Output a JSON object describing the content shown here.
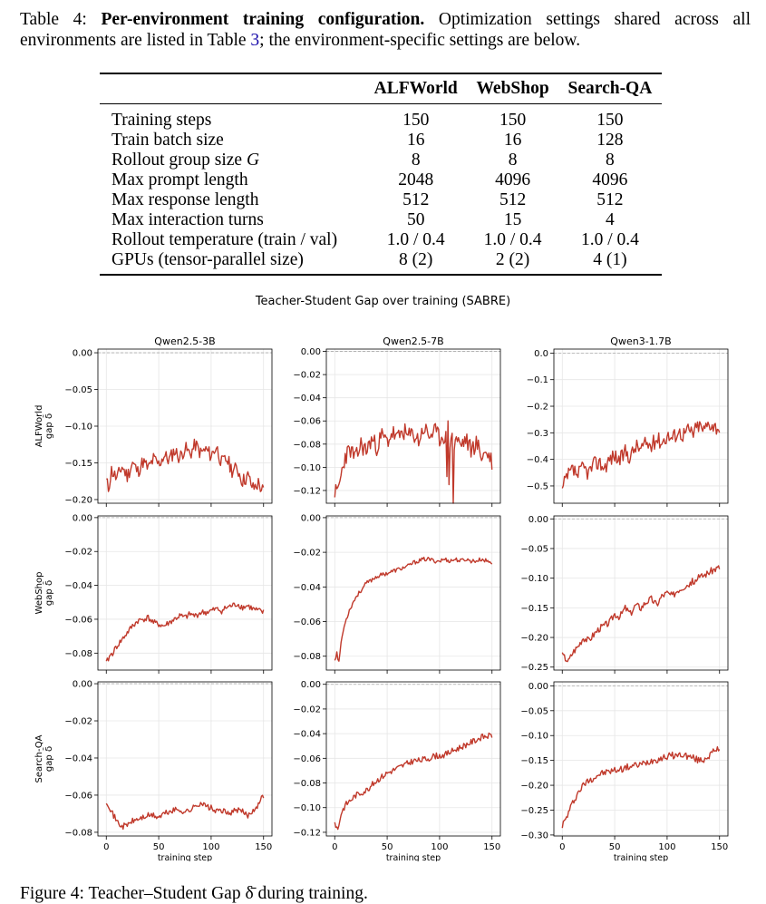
{
  "table_caption": {
    "label": "Table 4:",
    "title": "Per-environment training configuration.",
    "text_before_ref": "Optimization settings shared across all environments are listed in Table ",
    "ref": "3",
    "text_after_ref": "; the environment-specific settings are below."
  },
  "config_table": {
    "columns": [
      "",
      "ALFWorld",
      "WebShop",
      "Search-QA"
    ],
    "rows": [
      {
        "label": "Training steps",
        "label_var": "",
        "values": [
          "150",
          "150",
          "150"
        ]
      },
      {
        "label": "Train batch size",
        "label_var": "",
        "values": [
          "16",
          "16",
          "128"
        ]
      },
      {
        "label": "Rollout group size ",
        "label_var": "G",
        "values": [
          "8",
          "8",
          "8"
        ]
      },
      {
        "label": "Max prompt length",
        "label_var": "",
        "values": [
          "2048",
          "4096",
          "4096"
        ]
      },
      {
        "label": "Max response length",
        "label_var": "",
        "values": [
          "512",
          "512",
          "512"
        ]
      },
      {
        "label": "Max interaction turns",
        "label_var": "",
        "values": [
          "50",
          "15",
          "4"
        ]
      },
      {
        "label": "Rollout temperature (train / val)",
        "label_var": "",
        "values": [
          "1.0 / 0.4",
          "1.0 / 0.4",
          "1.0 / 0.4"
        ]
      },
      {
        "label": "GPUs (tensor-parallel size)",
        "label_var": "",
        "values": [
          "8 (2)",
          "2 (2)",
          "4 (1)"
        ]
      }
    ]
  },
  "figure_caption_partial": "Figure 4: Teacher–Student Gap δ̄ during training.",
  "colors": {
    "line": "#c0392b",
    "grid": "#e6e6e6",
    "zero": "#aaaaaa"
  },
  "chart_data": {
    "type": "line",
    "title": "Teacher-Student Gap over training (SABRE)",
    "col_titles": [
      "Qwen2.5-3B",
      "Qwen2.5-7B",
      "Qwen3-1.7B"
    ],
    "row_labels": [
      [
        "ALFWorld",
        "gap δ̄"
      ],
      [
        "WebShop",
        "gap δ̄"
      ],
      [
        "Search-QA",
        "gap δ̄"
      ]
    ],
    "xlabel": "training step",
    "xlim": [
      -8,
      158
    ],
    "xticks": [
      0,
      50,
      100,
      150
    ],
    "grid": true,
    "panels": [
      {
        "row": 0,
        "col": 0,
        "ylim": [
          -0.205,
          0.005
        ],
        "yticks": [
          "0.00",
          "-0.05",
          "-0.10",
          "-0.15",
          "-0.20"
        ],
        "kx": [
          0,
          2,
          5,
          10,
          15,
          20,
          25,
          30,
          35,
          40,
          45,
          50,
          55,
          60,
          65,
          70,
          75,
          80,
          85,
          90,
          95,
          100,
          105,
          110,
          115,
          120,
          125,
          130,
          135,
          140,
          145,
          150
        ],
        "ky": [
          -0.175,
          -0.185,
          -0.16,
          -0.172,
          -0.155,
          -0.168,
          -0.15,
          -0.162,
          -0.148,
          -0.158,
          -0.145,
          -0.152,
          -0.14,
          -0.146,
          -0.133,
          -0.143,
          -0.13,
          -0.138,
          -0.125,
          -0.137,
          -0.132,
          -0.14,
          -0.128,
          -0.15,
          -0.145,
          -0.16,
          -0.158,
          -0.175,
          -0.168,
          -0.185,
          -0.178,
          -0.19
        ],
        "noise": 0.01,
        "seed": 11
      },
      {
        "row": 0,
        "col": 1,
        "ylim": [
          -0.131,
          0.002
        ],
        "yticks": [
          "0.00",
          "-0.02",
          "-0.04",
          "-0.06",
          "-0.08",
          "-0.10",
          "-0.12"
        ],
        "kx": [
          0,
          2,
          5,
          10,
          15,
          20,
          25,
          30,
          35,
          40,
          45,
          50,
          55,
          60,
          65,
          70,
          75,
          80,
          85,
          90,
          95,
          100,
          105,
          110,
          115,
          120,
          125,
          130,
          135,
          140,
          145,
          150
        ],
        "ky": [
          -0.12,
          -0.124,
          -0.112,
          -0.09,
          -0.085,
          -0.093,
          -0.08,
          -0.086,
          -0.076,
          -0.082,
          -0.073,
          -0.078,
          -0.07,
          -0.076,
          -0.068,
          -0.074,
          -0.071,
          -0.077,
          -0.066,
          -0.073,
          -0.069,
          -0.075,
          -0.072,
          -0.078,
          -0.074,
          -0.081,
          -0.076,
          -0.085,
          -0.079,
          -0.09,
          -0.087,
          -0.095
        ],
        "noise": 0.008,
        "seed": 23,
        "spikes": [
          [
            107,
            -0.108
          ],
          [
            108,
            -0.06
          ],
          [
            109,
            -0.115
          ],
          [
            111,
            -0.075
          ],
          [
            113,
            -0.131
          ],
          [
            114,
            -0.085
          ]
        ]
      },
      {
        "row": 0,
        "col": 2,
        "ylim": [
          -0.565,
          0.015
        ],
        "yticks": [
          "0.0",
          "-0.1",
          "-0.2",
          "-0.3",
          "-0.4",
          "-0.5"
        ],
        "kx": [
          0,
          3,
          6,
          10,
          15,
          20,
          25,
          30,
          35,
          40,
          45,
          50,
          55,
          60,
          65,
          70,
          75,
          80,
          85,
          90,
          95,
          100,
          105,
          110,
          115,
          120,
          125,
          130,
          135,
          140,
          145,
          150
        ],
        "ky": [
          -0.52,
          -0.48,
          -0.46,
          -0.44,
          -0.46,
          -0.43,
          -0.45,
          -0.42,
          -0.41,
          -0.43,
          -0.4,
          -0.385,
          -0.405,
          -0.37,
          -0.39,
          -0.35,
          -0.36,
          -0.34,
          -0.35,
          -0.32,
          -0.335,
          -0.31,
          -0.32,
          -0.295,
          -0.305,
          -0.29,
          -0.3,
          -0.27,
          -0.29,
          -0.26,
          -0.275,
          -0.28
        ],
        "noise": 0.03,
        "seed": 37
      },
      {
        "row": 1,
        "col": 0,
        "ylim": [
          -0.09,
          0.001
        ],
        "yticks": [
          "0.00",
          "-0.02",
          "-0.04",
          "-0.06",
          "-0.08"
        ],
        "kx": [
          0,
          3,
          6,
          10,
          15,
          20,
          25,
          30,
          35,
          40,
          45,
          50,
          55,
          60,
          65,
          70,
          75,
          80,
          85,
          90,
          95,
          100,
          105,
          110,
          115,
          120,
          125,
          130,
          135,
          140,
          145,
          150
        ],
        "ky": [
          -0.086,
          -0.082,
          -0.08,
          -0.076,
          -0.072,
          -0.068,
          -0.064,
          -0.061,
          -0.06,
          -0.059,
          -0.062,
          -0.063,
          -0.064,
          -0.062,
          -0.06,
          -0.058,
          -0.059,
          -0.057,
          -0.058,
          -0.056,
          -0.056,
          -0.055,
          -0.054,
          -0.055,
          -0.053,
          -0.052,
          -0.051,
          -0.053,
          -0.052,
          -0.054,
          -0.055,
          -0.056
        ],
        "noise": 0.0018,
        "seed": 41
      },
      {
        "row": 1,
        "col": 1,
        "ylim": [
          -0.088,
          0.001
        ],
        "yticks": [
          "0.00",
          "-0.02",
          "-0.04",
          "-0.06",
          "-0.08"
        ],
        "kx": [
          0,
          2,
          4,
          6,
          8,
          10,
          15,
          20,
          25,
          30,
          35,
          40,
          45,
          50,
          55,
          60,
          65,
          70,
          75,
          80,
          85,
          90,
          95,
          100,
          105,
          110,
          115,
          120,
          125,
          130,
          135,
          140,
          145,
          150
        ],
        "ky": [
          -0.082,
          -0.078,
          -0.084,
          -0.072,
          -0.066,
          -0.06,
          -0.052,
          -0.046,
          -0.042,
          -0.038,
          -0.036,
          -0.034,
          -0.033,
          -0.032,
          -0.031,
          -0.03,
          -0.029,
          -0.028,
          -0.026,
          -0.025,
          -0.024,
          -0.024,
          -0.025,
          -0.025,
          -0.024,
          -0.025,
          -0.024,
          -0.025,
          -0.024,
          -0.025,
          -0.025,
          -0.024,
          -0.025,
          -0.026
        ],
        "noise": 0.0012,
        "seed": 53
      },
      {
        "row": 1,
        "col": 2,
        "ylim": [
          -0.255,
          0.005
        ],
        "yticks": [
          "0.00",
          "-0.05",
          "-0.10",
          "-0.15",
          "-0.20",
          "-0.25"
        ],
        "kx": [
          0,
          3,
          6,
          10,
          15,
          20,
          25,
          30,
          35,
          40,
          45,
          50,
          55,
          60,
          65,
          70,
          75,
          80,
          85,
          90,
          95,
          100,
          105,
          110,
          115,
          120,
          125,
          130,
          135,
          140,
          145,
          150
        ],
        "ky": [
          -0.23,
          -0.235,
          -0.24,
          -0.225,
          -0.215,
          -0.2,
          -0.205,
          -0.195,
          -0.185,
          -0.18,
          -0.175,
          -0.16,
          -0.165,
          -0.15,
          -0.16,
          -0.145,
          -0.15,
          -0.14,
          -0.135,
          -0.145,
          -0.13,
          -0.125,
          -0.13,
          -0.12,
          -0.115,
          -0.11,
          -0.105,
          -0.1,
          -0.095,
          -0.09,
          -0.085,
          -0.082
        ],
        "noise": 0.006,
        "seed": 67
      },
      {
        "row": 2,
        "col": 0,
        "ylim": [
          -0.082,
          0.001
        ],
        "yticks": [
          "0.00",
          "-0.02",
          "-0.04",
          "-0.06",
          "-0.08"
        ],
        "kx": [
          0,
          3,
          6,
          10,
          15,
          20,
          25,
          30,
          35,
          40,
          45,
          50,
          55,
          60,
          65,
          70,
          75,
          80,
          85,
          90,
          95,
          100,
          105,
          110,
          115,
          120,
          125,
          130,
          135,
          140,
          145,
          150
        ],
        "ky": [
          -0.063,
          -0.066,
          -0.07,
          -0.074,
          -0.077,
          -0.076,
          -0.074,
          -0.073,
          -0.072,
          -0.071,
          -0.071,
          -0.072,
          -0.07,
          -0.069,
          -0.068,
          -0.068,
          -0.069,
          -0.068,
          -0.066,
          -0.064,
          -0.066,
          -0.067,
          -0.069,
          -0.068,
          -0.07,
          -0.069,
          -0.068,
          -0.069,
          -0.071,
          -0.068,
          -0.065,
          -0.06
        ],
        "noise": 0.0016,
        "seed": 71
      },
      {
        "row": 2,
        "col": 1,
        "ylim": [
          -0.123,
          0.002
        ],
        "yticks": [
          "0.00",
          "-0.02",
          "-0.04",
          "-0.06",
          "-0.08",
          "-0.10",
          "-0.12"
        ],
        "kx": [
          0,
          3,
          6,
          10,
          15,
          20,
          25,
          30,
          35,
          40,
          45,
          50,
          55,
          60,
          65,
          70,
          75,
          80,
          85,
          90,
          95,
          100,
          105,
          110,
          115,
          120,
          125,
          130,
          135,
          140,
          145,
          150
        ],
        "ky": [
          -0.112,
          -0.118,
          -0.105,
          -0.098,
          -0.094,
          -0.09,
          -0.088,
          -0.086,
          -0.082,
          -0.078,
          -0.075,
          -0.072,
          -0.07,
          -0.068,
          -0.066,
          -0.064,
          -0.062,
          -0.062,
          -0.061,
          -0.06,
          -0.058,
          -0.058,
          -0.057,
          -0.055,
          -0.053,
          -0.051,
          -0.049,
          -0.047,
          -0.045,
          -0.043,
          -0.042,
          -0.042
        ],
        "noise": 0.0025,
        "seed": 83
      },
      {
        "row": 2,
        "col": 2,
        "ylim": [
          -0.302,
          0.008
        ],
        "yticks": [
          "0.00",
          "-0.05",
          "-0.10",
          "-0.15",
          "-0.20",
          "-0.25",
          "-0.30"
        ],
        "kx": [
          0,
          3,
          6,
          10,
          15,
          20,
          25,
          30,
          35,
          40,
          45,
          50,
          55,
          60,
          65,
          70,
          75,
          80,
          85,
          90,
          95,
          100,
          105,
          110,
          115,
          120,
          125,
          130,
          135,
          140,
          145,
          150
        ],
        "ky": [
          -0.28,
          -0.27,
          -0.255,
          -0.235,
          -0.215,
          -0.2,
          -0.19,
          -0.185,
          -0.178,
          -0.175,
          -0.172,
          -0.17,
          -0.168,
          -0.165,
          -0.162,
          -0.16,
          -0.158,
          -0.155,
          -0.15,
          -0.148,
          -0.145,
          -0.142,
          -0.14,
          -0.14,
          -0.138,
          -0.142,
          -0.145,
          -0.15,
          -0.148,
          -0.14,
          -0.132,
          -0.126
        ],
        "noise": 0.007,
        "seed": 97
      }
    ]
  }
}
